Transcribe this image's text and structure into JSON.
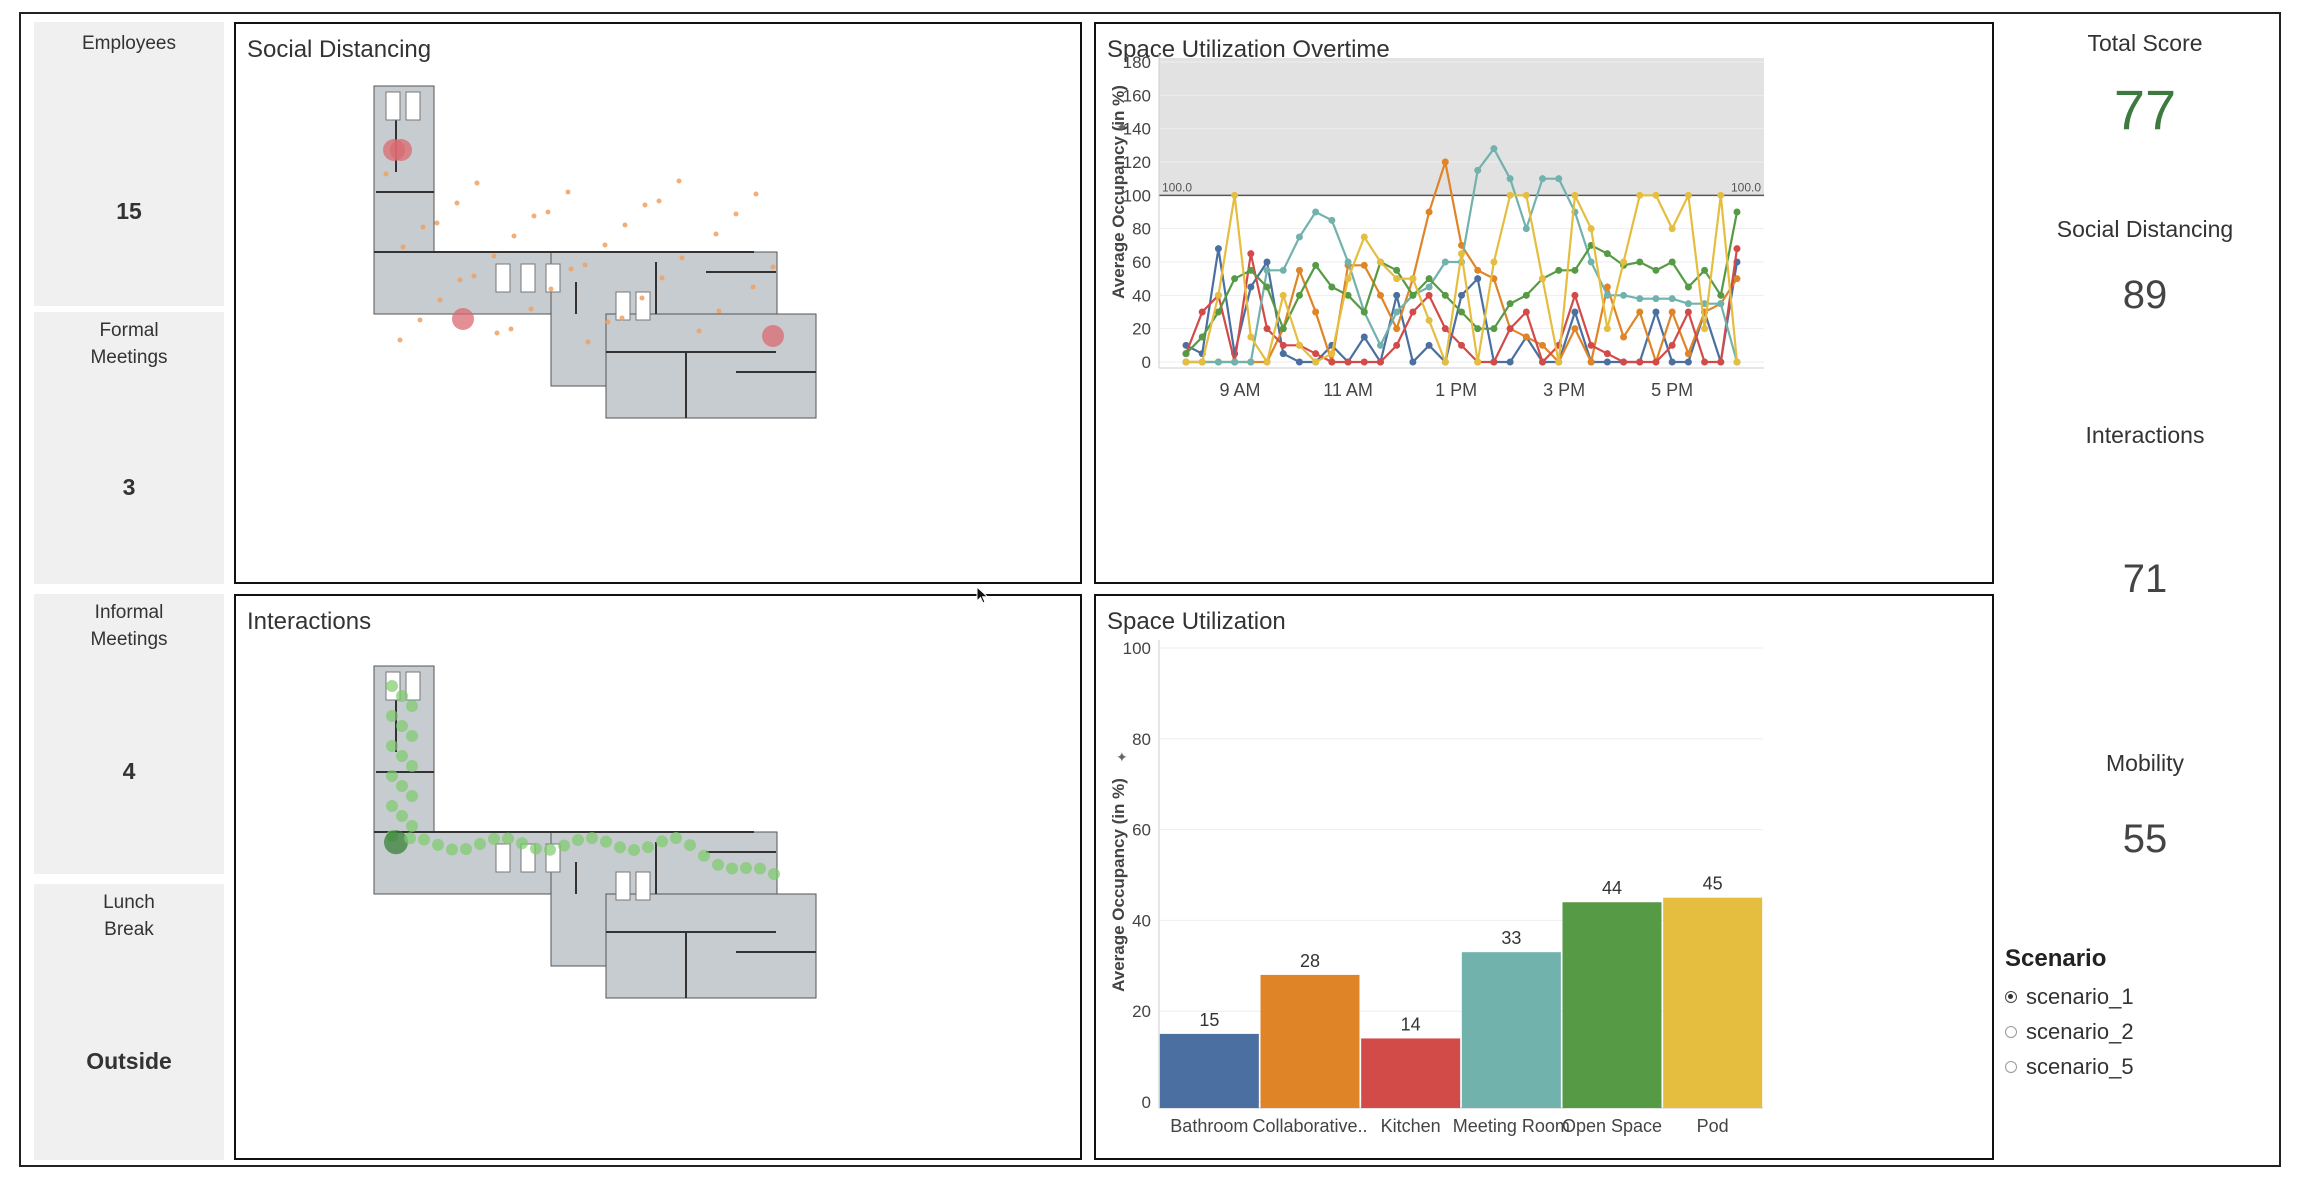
{
  "kpis": [
    {
      "label": "Employees",
      "value": "15"
    },
    {
      "label": "Formal\nMeetings",
      "value": "3"
    },
    {
      "label": "Informal\nMeetings",
      "value": "4"
    },
    {
      "label": "Lunch\nBreak",
      "value": "Outside"
    }
  ],
  "panels": {
    "social_distancing_title": "Social Distancing",
    "interactions_title": "Interactions",
    "overtime_title": "Space Utilization Overtime",
    "utilization_title": "Space Utilization"
  },
  "scores": {
    "total_label": "Total Score",
    "total_value": "77",
    "social_label": "Social Distancing",
    "social_value": "89",
    "interactions_label": "Interactions",
    "interactions_value": "71",
    "mobility_label": "Mobility",
    "mobility_value": "55"
  },
  "scenario": {
    "title": "Scenario",
    "options": [
      "scenario_1",
      "scenario_2",
      "scenario_5"
    ],
    "selected": "scenario_1"
  },
  "colors": {
    "total_score": "#3d7a3f",
    "reference_band": "#e2e2e2",
    "Bathroom": "#4a6fa0",
    "Collaborative..": "#e08428",
    "Kitchen": "#d24b48",
    "Meeting Room": "#71b2ad",
    "Open Space": "#569a46",
    "Pod": "#e5bd3f",
    "floor": "#c7ccd0",
    "heat_red": "#d96a72",
    "heat_orange": "#f0a060",
    "heat_green": "#7ccc6a"
  },
  "chart_data": [
    {
      "type": "line",
      "title": "Space Utilization Overtime",
      "ylabel": "Average Occupancy (in %)",
      "ylim": [
        0,
        180
      ],
      "yticks": [
        0,
        20,
        40,
        60,
        80,
        100,
        120,
        140,
        160,
        180
      ],
      "x_tick_labels": [
        "9 AM",
        "11 AM",
        "1 PM",
        "3 PM",
        "5 PM"
      ],
      "x_tick_positions": [
        9,
        11,
        13,
        15,
        17
      ],
      "xlim": [
        7.5,
        18.7
      ],
      "reference_line": {
        "value": 100,
        "left_label": "100.0",
        "right_label": "100.0"
      },
      "series": [
        {
          "name": "Bathroom",
          "x": [
            8,
            8.3,
            8.6,
            8.9,
            9.2,
            9.5,
            9.8,
            10.1,
            10.4,
            10.7,
            11,
            11.3,
            11.6,
            11.9,
            12.2,
            12.5,
            12.8,
            13.1,
            13.4,
            13.7,
            14,
            14.3,
            14.6,
            14.9,
            15.2,
            15.5,
            15.8,
            16.1,
            16.4,
            16.7,
            17,
            17.3,
            17.6,
            17.9,
            18.2
          ],
          "y": [
            10,
            5,
            68,
            5,
            45,
            60,
            5,
            0,
            0,
            10,
            0,
            15,
            0,
            40,
            0,
            10,
            0,
            40,
            50,
            0,
            0,
            15,
            0,
            0,
            30,
            0,
            0,
            0,
            0,
            30,
            0,
            0,
            30,
            0,
            60
          ]
        },
        {
          "name": "Collaborative..",
          "x": [
            8,
            8.3,
            8.6,
            8.9,
            9.2,
            9.5,
            9.8,
            10.1,
            10.4,
            10.7,
            11,
            11.3,
            11.6,
            11.9,
            12.2,
            12.5,
            12.8,
            13.1,
            13.4,
            13.7,
            14,
            14.3,
            14.6,
            14.9,
            15.2,
            15.5,
            15.8,
            16.1,
            16.4,
            16.7,
            17,
            17.3,
            17.6,
            17.9,
            18.2
          ],
          "y": [
            0,
            0,
            0,
            0,
            0,
            0,
            20,
            55,
            30,
            0,
            58,
            58,
            40,
            20,
            50,
            90,
            120,
            70,
            55,
            50,
            20,
            15,
            10,
            0,
            20,
            0,
            45,
            15,
            30,
            0,
            30,
            5,
            30,
            35,
            50
          ]
        },
        {
          "name": "Kitchen",
          "x": [
            8,
            8.3,
            8.6,
            8.9,
            9.2,
            9.5,
            9.8,
            10.1,
            10.4,
            10.7,
            11,
            11.3,
            11.6,
            11.9,
            12.2,
            12.5,
            12.8,
            13.1,
            13.4,
            13.7,
            14,
            14.3,
            14.6,
            14.9,
            15.2,
            15.5,
            15.8,
            16.1,
            16.4,
            16.7,
            17,
            17.3,
            17.6,
            17.9,
            18.2
          ],
          "y": [
            5,
            30,
            40,
            0,
            65,
            20,
            10,
            10,
            5,
            0,
            0,
            0,
            0,
            10,
            30,
            40,
            20,
            10,
            0,
            0,
            20,
            30,
            0,
            10,
            40,
            10,
            5,
            0,
            0,
            0,
            10,
            30,
            0,
            0,
            68
          ]
        },
        {
          "name": "Meeting Room",
          "x": [
            8,
            8.3,
            8.6,
            8.9,
            9.2,
            9.5,
            9.8,
            10.1,
            10.4,
            10.7,
            11,
            11.3,
            11.6,
            11.9,
            12.2,
            12.5,
            12.8,
            13.1,
            13.4,
            13.7,
            14,
            14.3,
            14.6,
            14.9,
            15.2,
            15.5,
            15.8,
            16.1,
            16.4,
            16.7,
            17,
            17.3,
            17.6,
            17.9,
            18.2
          ],
          "y": [
            0,
            0,
            0,
            0,
            0,
            55,
            55,
            75,
            90,
            85,
            60,
            30,
            10,
            30,
            40,
            45,
            60,
            60,
            115,
            128,
            110,
            80,
            110,
            110,
            90,
            60,
            40,
            40,
            38,
            38,
            38,
            35,
            35,
            35,
            0
          ]
        },
        {
          "name": "Open Space",
          "x": [
            8,
            8.3,
            8.6,
            8.9,
            9.2,
            9.5,
            9.8,
            10.1,
            10.4,
            10.7,
            11,
            11.3,
            11.6,
            11.9,
            12.2,
            12.5,
            12.8,
            13.1,
            13.4,
            13.7,
            14,
            14.3,
            14.6,
            14.9,
            15.2,
            15.5,
            15.8,
            16.1,
            16.4,
            16.7,
            17,
            17.3,
            17.6,
            17.9,
            18.2
          ],
          "y": [
            5,
            15,
            30,
            50,
            55,
            45,
            20,
            40,
            58,
            45,
            40,
            30,
            60,
            55,
            40,
            50,
            40,
            30,
            20,
            20,
            35,
            40,
            50,
            55,
            55,
            70,
            65,
            58,
            60,
            55,
            60,
            45,
            55,
            40,
            90
          ]
        },
        {
          "name": "Pod",
          "x": [
            8,
            8.3,
            8.6,
            8.9,
            9.2,
            9.5,
            9.8,
            10.1,
            10.4,
            10.7,
            11,
            11.3,
            11.6,
            11.9,
            12.2,
            12.5,
            12.8,
            13.1,
            13.4,
            13.7,
            14,
            14.3,
            14.6,
            14.9,
            15.2,
            15.5,
            15.8,
            16.1,
            16.4,
            16.7,
            17,
            17.3,
            17.6,
            17.9,
            18.2
          ],
          "y": [
            0,
            0,
            40,
            100,
            15,
            0,
            40,
            10,
            0,
            5,
            50,
            75,
            60,
            50,
            50,
            25,
            0,
            65,
            0,
            60,
            100,
            100,
            50,
            0,
            100,
            80,
            20,
            60,
            100,
            100,
            80,
            100,
            20,
            100,
            0
          ]
        }
      ]
    },
    {
      "type": "bar",
      "title": "Space Utilization",
      "ylabel": "Average Occupancy (in %)",
      "ylim": [
        0,
        100
      ],
      "yticks": [
        0,
        20,
        40,
        60,
        80,
        100
      ],
      "categories": [
        "Bathroom",
        "Collaborative..",
        "Kitchen",
        "Meeting Room",
        "Open Space",
        "Pod"
      ],
      "values": [
        15,
        28,
        14,
        33,
        44,
        45
      ]
    }
  ]
}
